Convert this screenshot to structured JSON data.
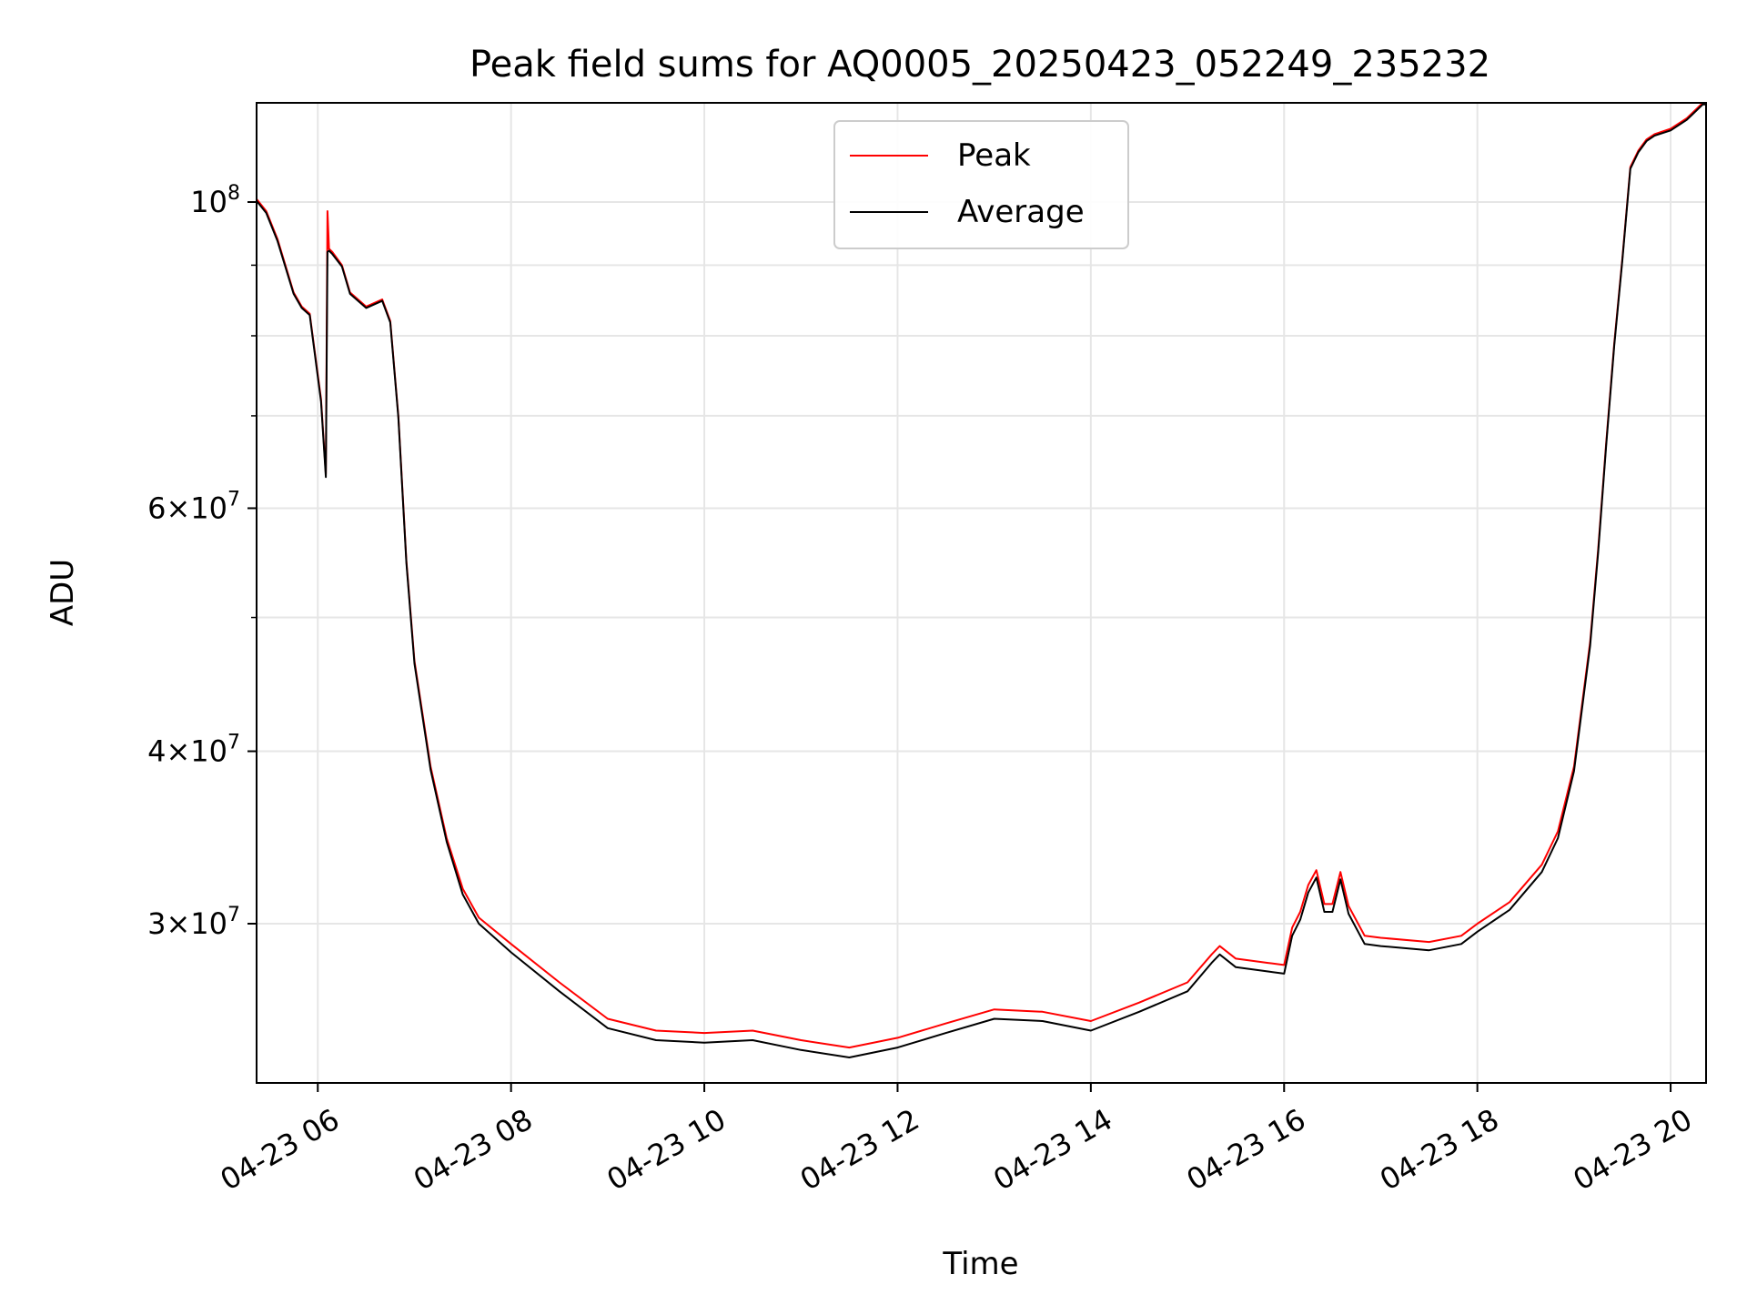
{
  "chart_data": {
    "type": "line",
    "title": "Peak field sums for AQ0005_20250423_052249_235232",
    "xlabel": "Time",
    "ylabel": "ADU",
    "yscale": "log",
    "grid": true,
    "legend_position": "top-center",
    "xlim": [
      "2025-04-23 05:22",
      "2025-04-23 20:22"
    ],
    "ylim": [
      23000000,
      118000000
    ],
    "x_ticks": [
      {
        "label": "04-23 06",
        "value": "2025-04-23 06:00"
      },
      {
        "label": "04-23 08",
        "value": "2025-04-23 08:00"
      },
      {
        "label": "04-23 10",
        "value": "2025-04-23 10:00"
      },
      {
        "label": "04-23 12",
        "value": "2025-04-23 12:00"
      },
      {
        "label": "04-23 14",
        "value": "2025-04-23 14:00"
      },
      {
        "label": "04-23 16",
        "value": "2025-04-23 16:00"
      },
      {
        "label": "04-23 18",
        "value": "2025-04-23 18:00"
      },
      {
        "label": "04-23 20",
        "value": "2025-04-23 20:00"
      }
    ],
    "y_major_ticks": [
      {
        "value": 100000000,
        "base": "10",
        "exp": "8",
        "mant": ""
      },
      {
        "value": 60000000,
        "base": "10",
        "exp": "7",
        "mant": "6"
      },
      {
        "value": 40000000,
        "base": "10",
        "exp": "7",
        "mant": "4"
      },
      {
        "value": 30000000,
        "base": "10",
        "exp": "7",
        "mant": "3"
      }
    ],
    "y_minor_ticks": [
      50000000,
      70000000,
      80000000,
      90000000
    ],
    "series": [
      {
        "name": "Peak",
        "color": "#ff0000",
        "x": [
          "2025-04-23 05:22",
          "2025-04-23 05:28",
          "2025-04-23 05:35",
          "2025-04-23 05:45",
          "2025-04-23 05:50",
          "2025-04-23 05:55",
          "2025-04-23 06:02",
          "2025-04-23 06:05",
          "2025-04-23 06:06",
          "2025-04-23 06:07",
          "2025-04-23 06:09",
          "2025-04-23 06:15",
          "2025-04-23 06:20",
          "2025-04-23 06:30",
          "2025-04-23 06:40",
          "2025-04-23 06:45",
          "2025-04-23 06:50",
          "2025-04-23 06:55",
          "2025-04-23 07:00",
          "2025-04-23 07:10",
          "2025-04-23 07:20",
          "2025-04-23 07:30",
          "2025-04-23 07:40",
          "2025-04-23 08:00",
          "2025-04-23 08:30",
          "2025-04-23 09:00",
          "2025-04-23 09:30",
          "2025-04-23 10:00",
          "2025-04-23 10:30",
          "2025-04-23 11:00",
          "2025-04-23 11:30",
          "2025-04-23 12:00",
          "2025-04-23 12:30",
          "2025-04-23 13:00",
          "2025-04-23 13:30",
          "2025-04-23 14:00",
          "2025-04-23 14:30",
          "2025-04-23 15:00",
          "2025-04-23 15:15",
          "2025-04-23 15:20",
          "2025-04-23 15:30",
          "2025-04-23 15:50",
          "2025-04-23 16:00",
          "2025-04-23 16:05",
          "2025-04-23 16:10",
          "2025-04-23 16:15",
          "2025-04-23 16:20",
          "2025-04-23 16:25",
          "2025-04-23 16:30",
          "2025-04-23 16:35",
          "2025-04-23 16:40",
          "2025-04-23 16:50",
          "2025-04-23 17:00",
          "2025-04-23 17:30",
          "2025-04-23 17:50",
          "2025-04-23 18:00",
          "2025-04-23 18:20",
          "2025-04-23 18:40",
          "2025-04-23 18:50",
          "2025-04-23 19:00",
          "2025-04-23 19:10",
          "2025-04-23 19:15",
          "2025-04-23 19:20",
          "2025-04-23 19:25",
          "2025-04-23 19:30",
          "2025-04-23 19:35",
          "2025-04-23 19:40",
          "2025-04-23 19:45",
          "2025-04-23 19:50",
          "2025-04-23 20:00",
          "2025-04-23 20:10",
          "2025-04-23 20:20",
          "2025-04-23 20:22"
        ],
        "y": [
          100500000,
          98500000,
          94000000,
          86000000,
          84000000,
          83000000,
          72000000,
          63500000,
          98500000,
          92500000,
          92000000,
          90000000,
          86000000,
          84000000,
          85000000,
          82000000,
          70000000,
          55000000,
          46500000,
          39000000,
          34600000,
          31800000,
          30300000,
          29000000,
          27200000,
          25600000,
          25100000,
          25000000,
          25100000,
          24700000,
          24400000,
          24800000,
          25400000,
          26000000,
          25900000,
          25500000,
          26300000,
          27200000,
          28500000,
          28900000,
          28300000,
          28100000,
          28000000,
          29800000,
          30600000,
          32000000,
          32800000,
          31000000,
          31000000,
          32700000,
          30900000,
          29400000,
          29300000,
          29100000,
          29400000,
          30000000,
          31100000,
          33100000,
          35000000,
          39000000,
          48000000,
          56000000,
          67000000,
          79000000,
          91000000,
          106000000,
          109000000,
          111000000,
          112000000,
          113000000,
          115000000,
          118000000,
          118000000
        ]
      },
      {
        "name": "Average",
        "color": "#000000",
        "x": [
          "2025-04-23 05:22",
          "2025-04-23 05:28",
          "2025-04-23 05:35",
          "2025-04-23 05:45",
          "2025-04-23 05:50",
          "2025-04-23 05:55",
          "2025-04-23 06:02",
          "2025-04-23 06:05",
          "2025-04-23 06:06",
          "2025-04-23 06:07",
          "2025-04-23 06:09",
          "2025-04-23 06:15",
          "2025-04-23 06:20",
          "2025-04-23 06:30",
          "2025-04-23 06:40",
          "2025-04-23 06:45",
          "2025-04-23 06:50",
          "2025-04-23 06:55",
          "2025-04-23 07:00",
          "2025-04-23 07:10",
          "2025-04-23 07:20",
          "2025-04-23 07:30",
          "2025-04-23 07:40",
          "2025-04-23 08:00",
          "2025-04-23 08:30",
          "2025-04-23 09:00",
          "2025-04-23 09:30",
          "2025-04-23 10:00",
          "2025-04-23 10:30",
          "2025-04-23 11:00",
          "2025-04-23 11:30",
          "2025-04-23 12:00",
          "2025-04-23 12:30",
          "2025-04-23 13:00",
          "2025-04-23 13:30",
          "2025-04-23 14:00",
          "2025-04-23 14:30",
          "2025-04-23 15:00",
          "2025-04-23 15:15",
          "2025-04-23 15:20",
          "2025-04-23 15:30",
          "2025-04-23 15:50",
          "2025-04-23 16:00",
          "2025-04-23 16:05",
          "2025-04-23 16:10",
          "2025-04-23 16:15",
          "2025-04-23 16:20",
          "2025-04-23 16:25",
          "2025-04-23 16:30",
          "2025-04-23 16:35",
          "2025-04-23 16:40",
          "2025-04-23 16:50",
          "2025-04-23 17:00",
          "2025-04-23 17:30",
          "2025-04-23 17:50",
          "2025-04-23 18:00",
          "2025-04-23 18:20",
          "2025-04-23 18:40",
          "2025-04-23 18:50",
          "2025-04-23 19:00",
          "2025-04-23 19:10",
          "2025-04-23 19:15",
          "2025-04-23 19:20",
          "2025-04-23 19:25",
          "2025-04-23 19:30",
          "2025-04-23 19:35",
          "2025-04-23 19:40",
          "2025-04-23 19:45",
          "2025-04-23 19:50",
          "2025-04-23 20:00",
          "2025-04-23 20:10",
          "2025-04-23 20:20",
          "2025-04-23 20:22"
        ],
        "y": [
          100200000,
          98200000,
          93700000,
          85800000,
          83800000,
          82800000,
          71700000,
          63200000,
          92000000,
          92200000,
          91700000,
          89800000,
          85800000,
          83800000,
          84800000,
          81800000,
          69800000,
          54800000,
          46300000,
          38800000,
          34400000,
          31500000,
          30000000,
          28600000,
          26800000,
          25200000,
          24700000,
          24600000,
          24700000,
          24300000,
          24000000,
          24400000,
          25000000,
          25600000,
          25500000,
          25100000,
          25900000,
          26800000,
          28100000,
          28500000,
          27900000,
          27700000,
          27600000,
          29400000,
          30200000,
          31600000,
          32400000,
          30600000,
          30600000,
          32300000,
          30500000,
          29000000,
          28900000,
          28700000,
          29000000,
          29600000,
          30700000,
          32700000,
          34600000,
          38700000,
          47700000,
          55700000,
          66700000,
          78700000,
          90700000,
          105700000,
          108700000,
          110700000,
          111700000,
          112700000,
          114700000,
          117700000,
          117700000
        ]
      }
    ]
  }
}
